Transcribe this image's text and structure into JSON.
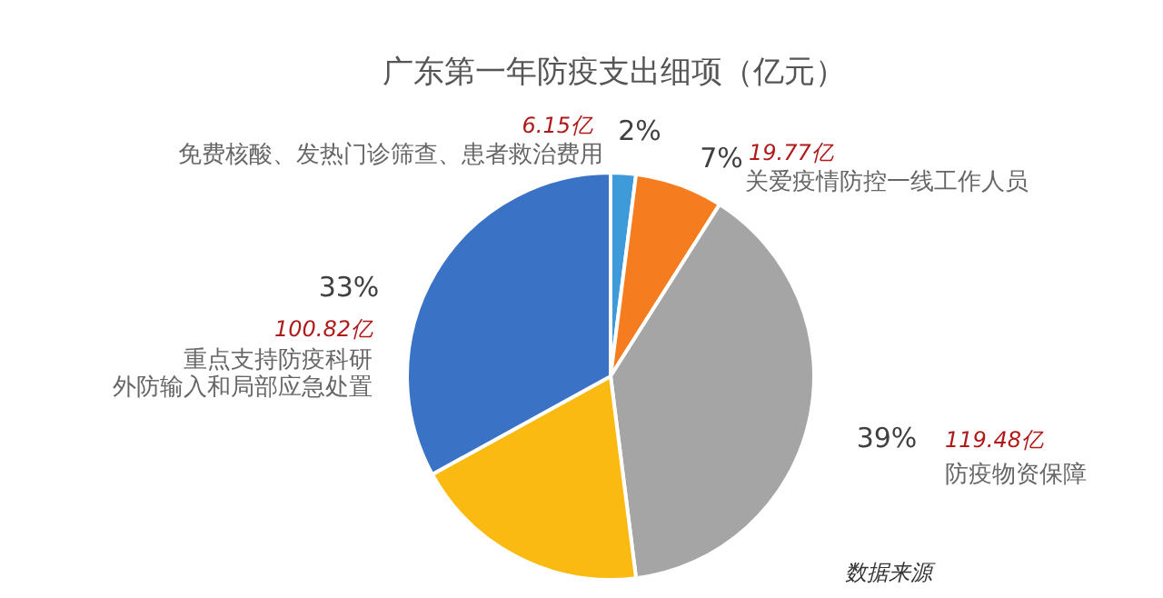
{
  "chart_data": {
    "type": "pie",
    "title": "广东第一年防疫支出细项（亿元）",
    "categories": [
      "免费核酸、发热门诊筛查、患者救治费用",
      "关爱疫情防控一线工作人员",
      "防疫物资保障",
      null,
      "重点支持防疫科研外防输入和局部应急处置"
    ],
    "values": [
      2,
      7,
      39,
      19,
      33
    ],
    "value_labels": [
      "2%",
      "7%",
      "39%",
      null,
      "33%"
    ],
    "colors": [
      "#3e9ad8",
      "#f57c1f",
      "#a6a5a6",
      "#fbba12",
      "#3a72c6"
    ],
    "annotations": [
      "6.15亿",
      "19.77亿",
      "119.48亿",
      "100.82亿",
      "数据来源"
    ]
  }
}
